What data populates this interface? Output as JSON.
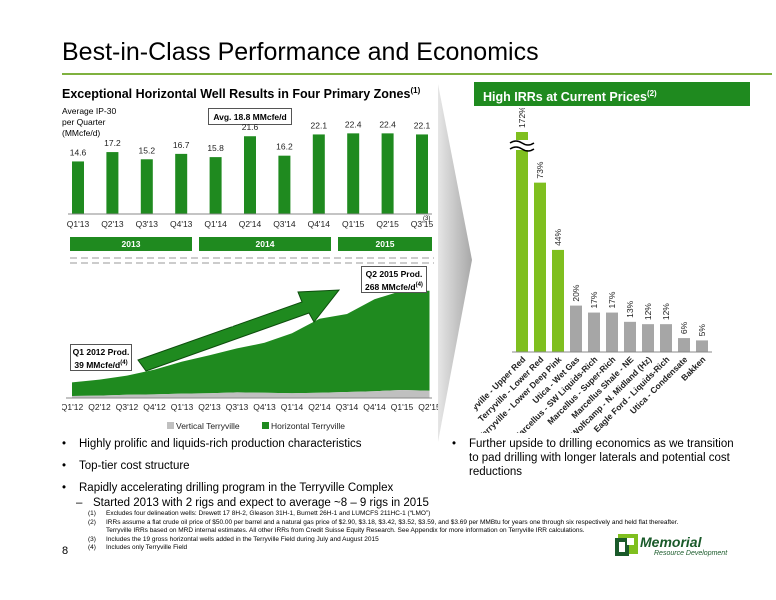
{
  "title": "Best-in-Class Performance and Economics",
  "left_section": {
    "heading": "Exceptional Horizontal Well Results in Four Primary Zones",
    "heading_note": "(1)",
    "y_title": "Average IP-30 per Quarter (MMcfe/d)",
    "avg_label": "Avg. 18.8 MMcfe/d",
    "years": [
      "2013",
      "2014",
      "2015"
    ],
    "q3_note": "(3)"
  },
  "production": {
    "cagr_label": "~73% CAGR",
    "q1_callout_line1": "Q1 2012 Prod.",
    "q1_callout_line2": "39 MMcfe/d",
    "q1_note": "(4)",
    "q2_callout_line1": "Q2 2015 Prod.",
    "q2_callout_line2": "268 MMcfe/d",
    "q2_note": "(4)"
  },
  "right_section": {
    "heading": "High IRRs at Current Prices",
    "heading_note": "(2)"
  },
  "chart_data": [
    {
      "type": "bar",
      "categories": [
        "Q1'13",
        "Q2'13",
        "Q3'13",
        "Q4'13",
        "Q1'14",
        "Q2'14",
        "Q3'14",
        "Q4'14",
        "Q1'15",
        "Q2'15",
        "Q3'15"
      ],
      "values": [
        14.6,
        17.2,
        15.2,
        16.7,
        15.8,
        21.6,
        16.2,
        22.1,
        22.4,
        22.4,
        22.1
      ],
      "value_labels": [
        "14.6",
        "17.2",
        "15.2",
        "16.7",
        "15.8",
        "21.6",
        "16.2",
        "22.1",
        "22.4",
        "22.4",
        "22.1"
      ],
      "ylabel": "Average IP-30 per Quarter (MMcfe/d)",
      "ylim": [
        0,
        25
      ],
      "color": "#1f8a1f",
      "grid": false
    },
    {
      "type": "area",
      "x": [
        "Q1'12",
        "Q2'12",
        "Q3'12",
        "Q4'12",
        "Q1'13",
        "Q2'13",
        "Q3'13",
        "Q4'13",
        "Q1'14",
        "Q2'14",
        "Q3'14",
        "Q4'14",
        "Q1'15",
        "Q2'15"
      ],
      "series": [
        {
          "name": "Vertical Terryville",
          "color": "#c0c0c0",
          "values": [
            5,
            6,
            8,
            9,
            11,
            12,
            14,
            13,
            12,
            13,
            15,
            17,
            20,
            18
          ]
        },
        {
          "name": "Horizontal Terryville",
          "color": "#1f8a1f",
          "values": [
            34,
            40,
            48,
            62,
            80,
            95,
            110,
            125,
            150,
            185,
            195,
            230,
            248,
            250
          ]
        }
      ],
      "ylim": [
        0,
        280
      ],
      "legend": "bottom",
      "legend_labels": [
        "Vertical Terryville",
        "Horizontal Terryville"
      ]
    },
    {
      "type": "bar",
      "categories": [
        "Terryville - Upper Red",
        "Terryville - Lower Red",
        "Terryville - Lower Deep Pink",
        "Utica - Wet Gas",
        "Marcellus - SW Liquids-Rich",
        "Marcellus - Super-Rich",
        "Marcellus Shale - NE",
        "Wolfcamp - N. Midland (Hz)",
        "Eagle Ford - Liquids-Rich",
        "Utica - Condensate",
        "Bakken"
      ],
      "values": [
        172,
        73,
        44,
        20,
        17,
        17,
        13,
        12,
        12,
        6,
        5
      ],
      "value_labels": [
        "172%",
        "73%",
        "44%",
        "20%",
        "17%",
        "17%",
        "13%",
        "12%",
        "12%",
        "6%",
        "5%"
      ],
      "highlight_count": 3,
      "colors": {
        "highlight": "#7fbf1f",
        "other": "#a6a6a6"
      },
      "axis_break": true
    }
  ],
  "bullets_left": [
    "Highly prolific and liquids-rich production characteristics",
    "Top-tier cost structure",
    "Rapidly accelerating drilling program in the Terryville Complex"
  ],
  "sub_bullet": "Started 2013 with 2 rigs and expect to average ~8 – 9 rigs in 2015",
  "bullet_right": "Further upside to drilling economics as we transition to pad drilling with longer laterals and potential cost reductions",
  "footnotes": [
    {
      "n": "(1)",
      "text": "Excludes four delineation wells: Drewett 17 8H-2, Gleason 31H-1, Burnett 26H-1 and LUMCFS 211HC-1 (“LMO”)"
    },
    {
      "n": "(2)",
      "text": "IRRs assume a flat crude oil price of $50.00 per barrel and a natural gas price of $2.90, $3.18, $3.42, $3.52, $3.59, and $3.69 per MMBtu for years one through six respectively and held flat thereafter.  Terryville IRRs based on MRD internal estimates.  All other IRRs from Credit Suisse Equity Research.  See Appendix for more information on Terryville IRR calculations."
    },
    {
      "n": "(3)",
      "text": "Includes the 19 gross horizontal wells added in the Terryville Field during July and August 2015"
    },
    {
      "n": "(4)",
      "text": "Includes only Terryville Field"
    }
  ],
  "page_number": "8",
  "logo": {
    "name": "Memorial",
    "subtitle": "Resource Development"
  }
}
